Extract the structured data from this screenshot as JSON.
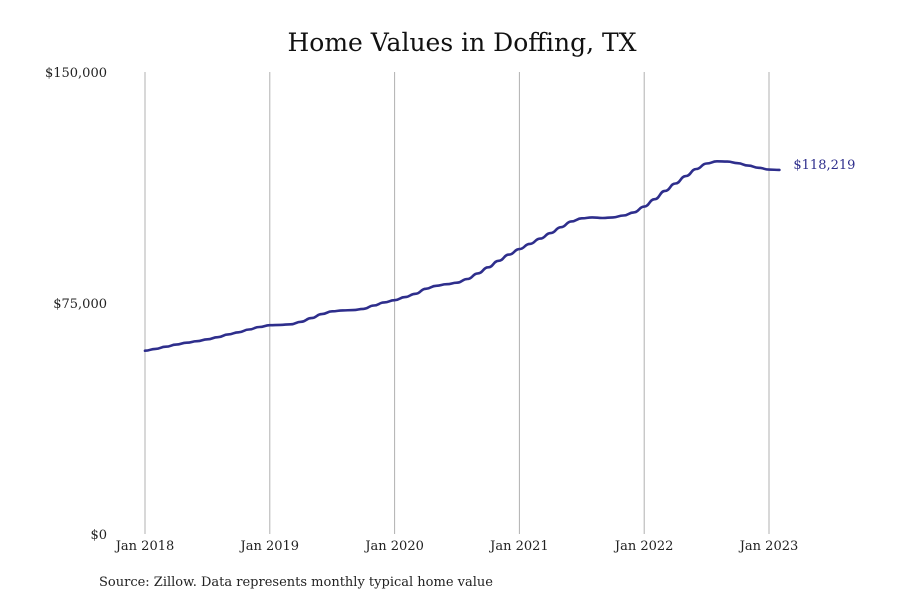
{
  "chart_data": {
    "type": "line",
    "title": "Home Values in Doffing, TX",
    "xlabel": "",
    "ylabel": "",
    "ylim": [
      0,
      150000
    ],
    "y_ticks": [
      "$0",
      "$75,000",
      "$150,000"
    ],
    "y_tick_values": [
      0,
      75000,
      150000
    ],
    "x_ticks": [
      "Jan 2018",
      "Jan 2019",
      "Jan 2020",
      "Jan 2021",
      "Jan 2022",
      "Jan 2023"
    ],
    "x_tick_values": [
      "2018-01",
      "2019-01",
      "2020-01",
      "2021-01",
      "2022-01",
      "2023-01"
    ],
    "x_range": [
      "2018-01",
      "2023-02"
    ],
    "grid": "vertical",
    "legend": "none",
    "color": "#2e2e8c",
    "end_label": "$118,219",
    "series": [
      {
        "x": [
          "2018-01",
          "2018-02",
          "2018-03",
          "2018-04",
          "2018-05",
          "2018-06",
          "2018-07",
          "2018-08",
          "2018-09",
          "2018-10",
          "2018-11",
          "2018-12",
          "2019-01",
          "2019-02",
          "2019-03",
          "2019-04",
          "2019-05",
          "2019-06",
          "2019-07",
          "2019-08",
          "2019-09",
          "2019-10",
          "2019-11",
          "2019-12",
          "2020-01",
          "2020-02",
          "2020-03",
          "2020-04",
          "2020-05",
          "2020-06",
          "2020-07",
          "2020-08",
          "2020-09",
          "2020-10",
          "2020-11",
          "2020-12",
          "2021-01",
          "2021-02",
          "2021-03",
          "2021-04",
          "2021-05",
          "2021-06",
          "2021-07",
          "2021-08",
          "2021-09",
          "2021-10",
          "2021-11",
          "2021-12",
          "2022-01",
          "2022-02",
          "2022-03",
          "2022-04",
          "2022-05",
          "2022-06",
          "2022-07",
          "2022-08",
          "2022-09",
          "2022-10",
          "2022-11",
          "2022-12",
          "2023-01",
          "2023-02"
        ],
        "values": [
          59500,
          60100,
          60800,
          61500,
          62100,
          62600,
          63200,
          63900,
          64800,
          65500,
          66400,
          67200,
          67800,
          67900,
          68100,
          68900,
          70100,
          71400,
          72300,
          72600,
          72700,
          73100,
          74200,
          75200,
          75900,
          76900,
          78000,
          79600,
          80600,
          81100,
          81600,
          82800,
          84600,
          86600,
          88700,
          90700,
          92500,
          94200,
          95900,
          97700,
          99600,
          101500,
          102500,
          102800,
          102600,
          102800,
          103400,
          104400,
          106300,
          108700,
          111400,
          113800,
          116200,
          118500,
          120300,
          121000,
          120900,
          120400,
          119600,
          118900,
          118300,
          118219
        ]
      }
    ]
  }
}
